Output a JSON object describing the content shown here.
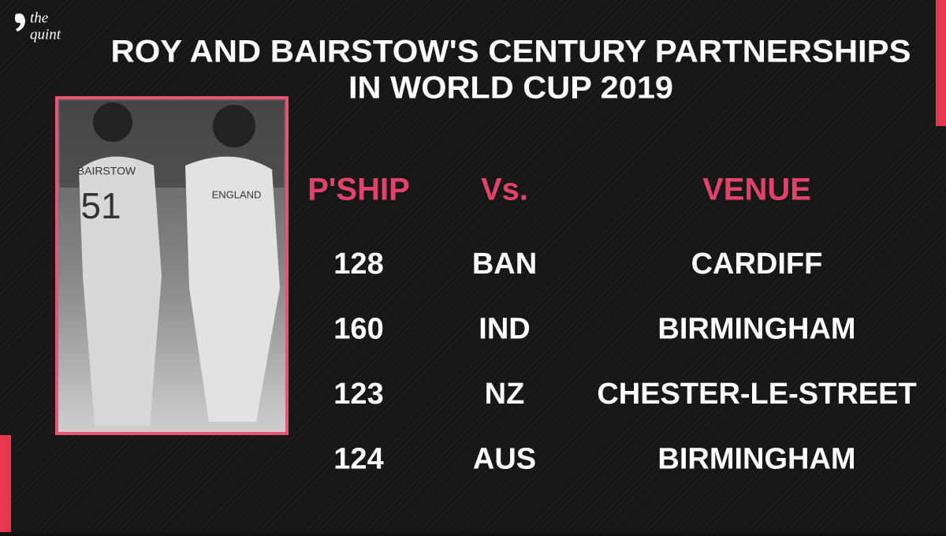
{
  "logo": {
    "line1": "the",
    "line2": "quint"
  },
  "header": {
    "title": [
      "ROY AND BAIRSTOW'S CENTURY PARTNERSHIPS",
      "IN WORLD CUP 2019"
    ]
  },
  "photo": {
    "jersey_name": "BAIRSTOW",
    "jersey_number": "51",
    "shirt_text": "ENGLAND"
  },
  "table": {
    "columns": [
      "P'SHIP",
      "Vs.",
      "VENUE"
    ],
    "rows": [
      [
        128,
        "BAN",
        "CARDIFF"
      ],
      [
        160,
        "IND",
        "BIRMINGHAM"
      ],
      [
        123,
        "NZ",
        "CHESTER-LE-STREET"
      ],
      [
        124,
        "AUS",
        "BIRMINGHAM"
      ]
    ]
  }
}
